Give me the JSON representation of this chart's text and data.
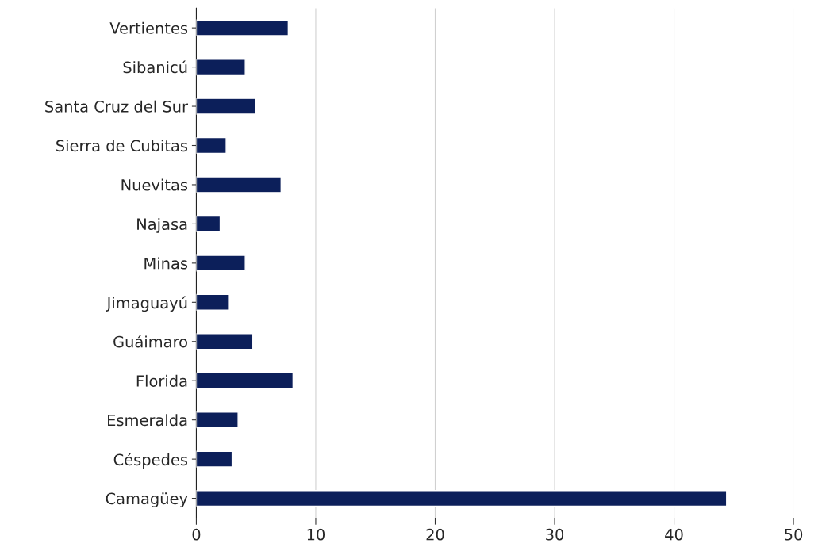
{
  "chart_data": {
    "type": "bar",
    "orientation": "horizontal",
    "categories": [
      "Vertientes",
      "Sibanicú",
      "Santa Cruz del Sur",
      "Sierra de Cubitas",
      "Nuevitas",
      "Najasa",
      "Minas",
      "Jimaguayú",
      "Guáimaro",
      "Florida",
      "Esmeralda",
      "Céspedes",
      "Camagüey"
    ],
    "values": [
      7.7,
      4.1,
      5.0,
      2.5,
      7.1,
      2.0,
      4.1,
      2.7,
      4.7,
      8.1,
      3.5,
      3.0,
      44.4
    ],
    "color": "#0c1f5a",
    "xlim": [
      0,
      50
    ],
    "xticks": [
      0,
      10,
      20,
      30,
      40,
      50
    ],
    "grid": "x",
    "legend": false
  }
}
